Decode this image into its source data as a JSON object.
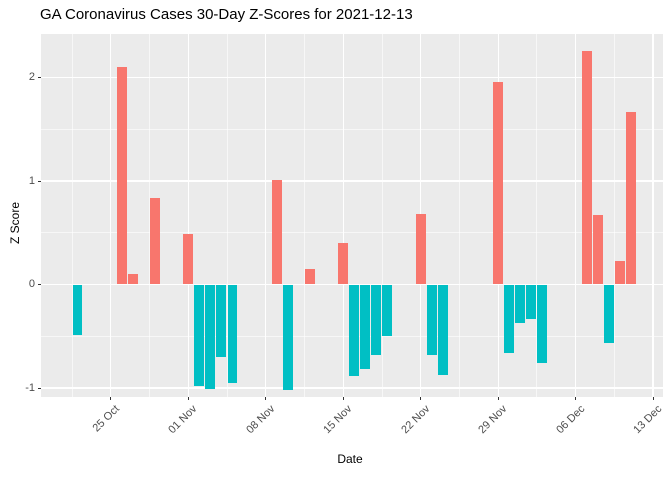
{
  "chart_data": {
    "type": "bar",
    "title": "GA Coronavirus Cases 30-Day Z-Scores for 2021-12-13",
    "xlabel": "Date",
    "ylabel": "Z Score",
    "ylim": [
      -1.09,
      2.42
    ],
    "x_start": "2021-10-18",
    "x_end": "2021-12-14",
    "grid": true,
    "legend": false,
    "colors": {
      "positive_bar": "#F8766D",
      "negative_bar": "#00BFC4",
      "panel_bg": "#EBEBEB",
      "grid_major": "#FFFFFF",
      "grid_minor": "#FFFFFF",
      "tick_mark": "#333333",
      "tick_label": "#4D4D4D",
      "text": "#000000"
    },
    "y_ticks": [
      {
        "value": 2,
        "label": "2"
      },
      {
        "value": 1,
        "label": "1"
      },
      {
        "value": 0,
        "label": "0"
      },
      {
        "value": -1,
        "label": "-1"
      }
    ],
    "y_minor_ticks": [
      1.5,
      0.5,
      -0.5
    ],
    "x_ticks": [
      {
        "date": "2021-10-25",
        "label": "25 Oct"
      },
      {
        "date": "2021-11-01",
        "label": "01 Nov"
      },
      {
        "date": "2021-11-08",
        "label": "08 Nov"
      },
      {
        "date": "2021-11-15",
        "label": "15 Nov"
      },
      {
        "date": "2021-11-22",
        "label": "22 Nov"
      },
      {
        "date": "2021-11-29",
        "label": "29 Nov"
      },
      {
        "date": "2021-12-06",
        "label": "06 Dec"
      },
      {
        "date": "2021-12-13",
        "label": "13 Dec"
      }
    ],
    "bars": [
      {
        "date": "2021-10-22",
        "value": -0.49
      },
      {
        "date": "2021-10-26",
        "value": 2.1
      },
      {
        "date": "2021-10-27",
        "value": 0.1
      },
      {
        "date": "2021-10-29",
        "value": 0.84
      },
      {
        "date": "2021-11-01",
        "value": 0.49
      },
      {
        "date": "2021-11-02",
        "value": -0.98
      },
      {
        "date": "2021-11-03",
        "value": -1.01
      },
      {
        "date": "2021-11-04",
        "value": -0.7
      },
      {
        "date": "2021-11-05",
        "value": -0.95
      },
      {
        "date": "2021-11-09",
        "value": 1.01
      },
      {
        "date": "2021-11-10",
        "value": -1.02
      },
      {
        "date": "2021-11-12",
        "value": 0.15
      },
      {
        "date": "2021-11-15",
        "value": 0.4
      },
      {
        "date": "2021-11-16",
        "value": -0.88
      },
      {
        "date": "2021-11-17",
        "value": -0.82
      },
      {
        "date": "2021-11-18",
        "value": -0.68
      },
      {
        "date": "2021-11-19",
        "value": -0.5
      },
      {
        "date": "2021-11-22",
        "value": 0.68
      },
      {
        "date": "2021-11-23",
        "value": -0.68
      },
      {
        "date": "2021-11-24",
        "value": -0.87
      },
      {
        "date": "2021-11-29",
        "value": 1.96
      },
      {
        "date": "2021-11-30",
        "value": -0.66
      },
      {
        "date": "2021-12-01",
        "value": -0.37
      },
      {
        "date": "2021-12-02",
        "value": -0.33
      },
      {
        "date": "2021-12-03",
        "value": -0.76
      },
      {
        "date": "2021-12-07",
        "value": 2.26
      },
      {
        "date": "2021-12-08",
        "value": 0.67
      },
      {
        "date": "2021-12-09",
        "value": -0.57
      },
      {
        "date": "2021-12-10",
        "value": 0.23
      },
      {
        "date": "2021-12-11",
        "value": 1.67
      }
    ]
  }
}
